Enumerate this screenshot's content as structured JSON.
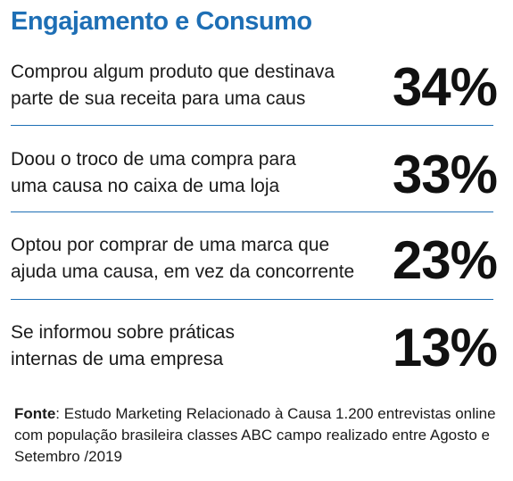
{
  "chart_data": {
    "type": "table",
    "title": "Engajamento e Consumo",
    "rows": [
      {
        "label": "Comprou algum produto que destinava\nparte de sua receita para uma caus",
        "value": 34,
        "display": "34%"
      },
      {
        "label": "Doou o troco de uma compra para\numa causa no caixa de uma loja",
        "value": 33,
        "display": "33%"
      },
      {
        "label": "Optou por comprar de uma marca que\najuda uma causa, em vez da concorrente",
        "value": 23,
        "display": "23%"
      },
      {
        "label": "Se informou sobre práticas\n internas de uma empresa",
        "value": 13,
        "display": "13%"
      }
    ]
  },
  "source": {
    "label": "Fonte",
    "text": ": Estudo Marketing Relacionado à Causa 1.200 entrevistas online com população brasileira classes ABC campo realizado entre Agosto e Setembro /2019"
  },
  "colors": {
    "accent": "#1e6fb5",
    "text": "#1a1a1a"
  }
}
